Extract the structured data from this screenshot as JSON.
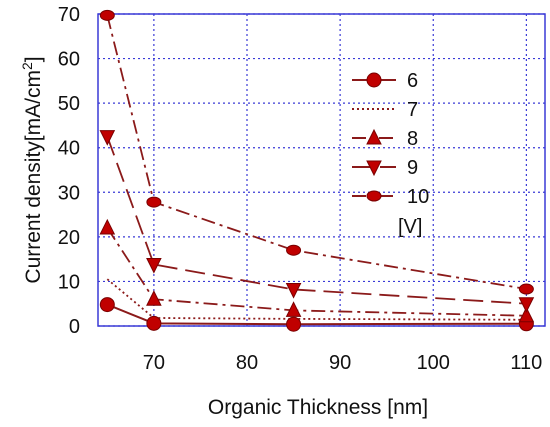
{
  "chart_data": {
    "type": "line",
    "title": "",
    "xlabel": "Organic Thickness [nm]",
    "ylabel": "Current density[mA/cm",
    "ylabel_superscript": "2",
    "ylabel_close": "]",
    "x": [
      65,
      70,
      85,
      110
    ],
    "xlim": [
      64,
      112
    ],
    "ylim": [
      0,
      70
    ],
    "x_ticks": [
      70,
      80,
      90,
      100,
      110
    ],
    "y_ticks": [
      0,
      10,
      20,
      30,
      40,
      50,
      60,
      70
    ],
    "grid": true,
    "grid_color": "#3a3ad6",
    "series_color": "#c00000",
    "line_color": "#8b1a1a",
    "legend_position": "right",
    "legend_unit": "[V]",
    "series": [
      {
        "name": "6",
        "marker": "circle",
        "dash": "solid",
        "values": [
          4.8,
          0.6,
          0.4,
          0.5
        ]
      },
      {
        "name": "7",
        "marker": "none",
        "dash": "dotted",
        "values": [
          10.5,
          1.8,
          1.6,
          1.4
        ]
      },
      {
        "name": "8",
        "marker": "triangle-up",
        "dash": "dashdot",
        "values": [
          22,
          6,
          3.5,
          2.3
        ]
      },
      {
        "name": "9",
        "marker": "triangle-down",
        "dash": "longdash",
        "values": [
          42.5,
          13.8,
          8.2,
          5
        ]
      },
      {
        "name": "10",
        "marker": "circle-cap",
        "dash": "dashdot",
        "values": [
          69.7,
          27.8,
          17,
          8.3
        ]
      }
    ]
  }
}
